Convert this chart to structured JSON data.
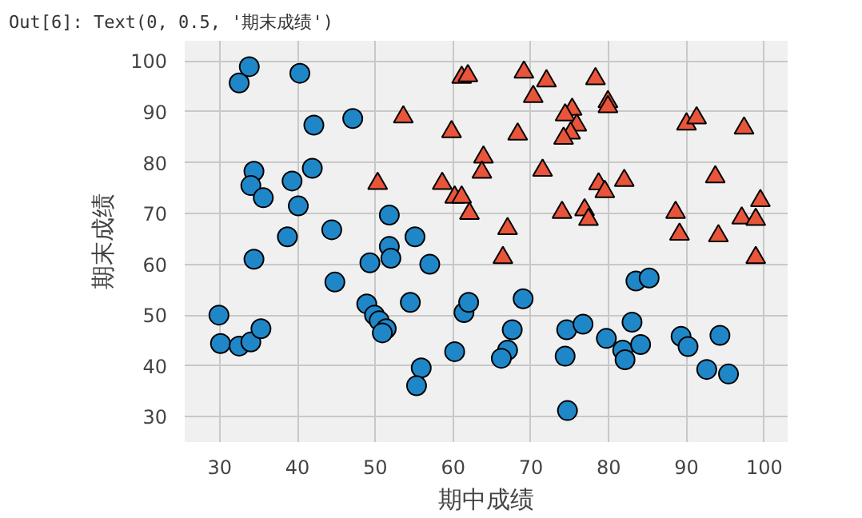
{
  "chart_data": {
    "type": "scatter",
    "xlabel": "期中成绩",
    "ylabel": "期末成绩",
    "annotations": [
      "Out[6]:  Text(0, 0.5, '期末成绩')"
    ],
    "xlim": [
      25.5,
      103
    ],
    "ylim": [
      25,
      104
    ],
    "xticks": [
      30,
      40,
      50,
      60,
      70,
      80,
      90,
      100
    ],
    "yticks": [
      30,
      40,
      50,
      60,
      70,
      80,
      90,
      100
    ],
    "grid": true,
    "series": [
      {
        "color": "#1f87c8",
        "marker": "circle",
        "x": [
          32.5,
          33.8,
          40.3,
          42.1,
          47.1,
          34.4,
          34.0,
          35.6,
          39.3,
          41.9,
          40.1,
          38.7,
          44.4,
          51.8,
          51.8,
          52.0,
          55.1,
          49.3,
          57.0,
          34.4,
          44.8,
          29.9,
          30.1,
          32.5,
          34.0,
          35.3,
          48.9,
          49.9,
          50.5,
          51.4,
          50.9,
          54.5,
          55.9,
          55.3,
          60.2,
          61.4,
          62.0,
          69.0,
          67.6,
          67.0,
          66.2,
          74.6,
          74.4,
          74.7,
          76.7,
          79.7,
          81.8,
          82.1,
          83.0,
          84.1,
          83.5,
          85.2,
          89.3,
          90.2,
          92.6,
          94.3,
          95.4
        ],
        "values": [
          95.7,
          98.9,
          97.6,
          87.4,
          88.7,
          78.3,
          75.5,
          73.1,
          76.4,
          78.9,
          71.5,
          65.4,
          66.8,
          69.7,
          63.5,
          61.2,
          65.4,
          60.3,
          60.0,
          61.0,
          56.5,
          50.0,
          44.4,
          43.9,
          44.7,
          47.3,
          52.2,
          50.0,
          48.9,
          47.3,
          46.5,
          52.5,
          39.6,
          36.1,
          42.8,
          50.5,
          52.5,
          53.2,
          47.1,
          43.1,
          41.5,
          47.1,
          41.9,
          31.2,
          48.2,
          45.4,
          43.1,
          41.2,
          48.6,
          44.2,
          56.7,
          57.3,
          45.8,
          43.8,
          39.3,
          46.0,
          38.4
        ]
      },
      {
        "color": "#e8553a",
        "marker": "triangle",
        "x": [
          53.6,
          50.3,
          59.8,
          61.1,
          61.9,
          58.6,
          60.2,
          61.1,
          62.1,
          69.1,
          72.0,
          70.3,
          78.3,
          79.9,
          79.9,
          75.3,
          74.4,
          75.9,
          75.1,
          74.2,
          90.0,
          91.3,
          97.4,
          68.3,
          63.9,
          63.7,
          71.5,
          78.7,
          79.5,
          82.0,
          93.7,
          99.5,
          74.0,
          76.9,
          77.4,
          88.6,
          97.1,
          98.9,
          67.0,
          89.1,
          94.1,
          66.4,
          98.9
        ],
        "values": [
          89.0,
          75.9,
          86.1,
          96.8,
          97.1,
          75.9,
          73.2,
          73.2,
          70.0,
          97.8,
          96.1,
          93.0,
          96.5,
          92.0,
          91.0,
          90.5,
          89.4,
          87.4,
          85.8,
          84.8,
          87.6,
          88.8,
          86.8,
          85.6,
          81.1,
          78.1,
          78.5,
          75.8,
          74.3,
          76.5,
          77.2,
          72.5,
          70.2,
          70.7,
          68.8,
          70.2,
          69.1,
          68.8,
          67.0,
          65.9,
          65.6,
          61.3,
          61.3
        ]
      }
    ]
  }
}
